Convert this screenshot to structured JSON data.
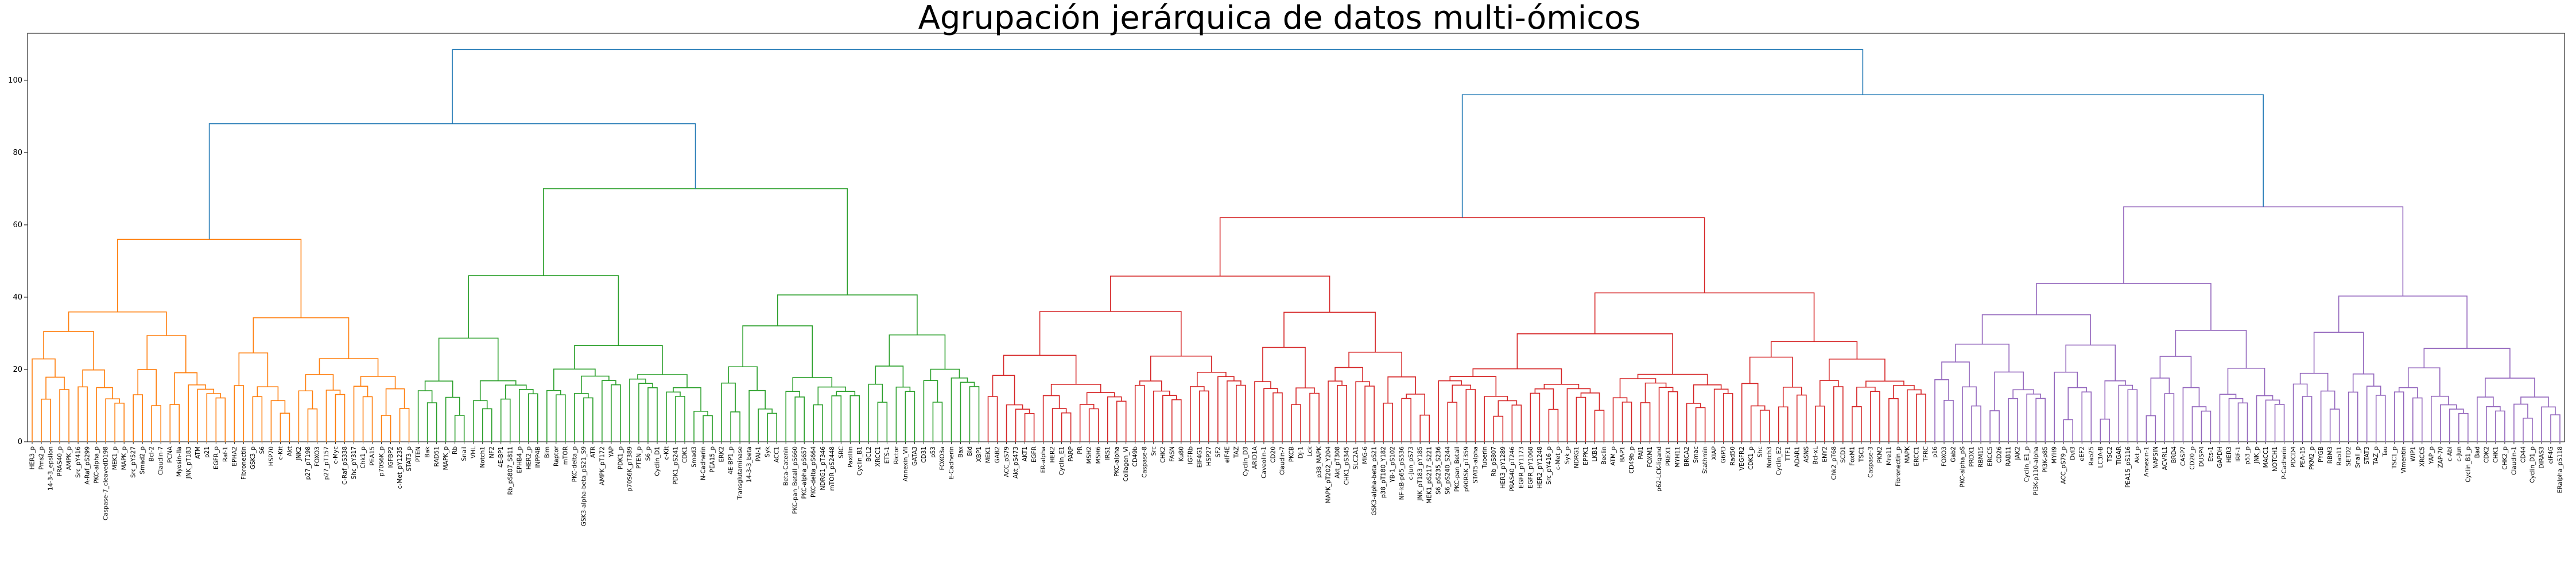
{
  "chart_data": {
    "type": "dendrogram",
    "title": "Agrupación jerárquica de datos multi-ómicos",
    "xlabel": "",
    "ylabel": "",
    "ylim": [
      0,
      113
    ],
    "yticks": [
      0,
      20,
      40,
      60,
      80,
      100
    ],
    "grid": false,
    "legend": "none",
    "colors": {
      "link_top": "#1f77b4",
      "cluster_1": "#ff7f0e",
      "cluster_2": "#2ca02c",
      "cluster_3": "#d62728",
      "cluster_4": "#9467bd"
    },
    "root_height": 108.5,
    "top_links": [
      {
        "name": "left_superclade",
        "height": 88,
        "children": [
          "cluster_1",
          "cluster_2"
        ]
      },
      {
        "name": "right_superclade",
        "height": 96,
        "children": [
          "cluster_3",
          "cluster_4"
        ]
      }
    ],
    "clusters": [
      {
        "id": "cluster_1",
        "color": "#ff7f0e",
        "height": 56,
        "leaves": [
          "HER3_p",
          "Pms2_p",
          "14-3-3_epsilon",
          "PRAS40_p",
          "AMPK_p",
          "Src_pY416",
          "A-Raf_pS299",
          "PKC-alpha_p",
          "Caspase-7_cleavedD198",
          "MEK1_p",
          "MAPK_p",
          "Src_pY527",
          "Smad2_p",
          "Bcl-2",
          "Claudin-7",
          "PCNA",
          "Myosin-IIa",
          "JNK_pT183",
          "ATM",
          "p21",
          "EGFR_p",
          "Raf-1",
          "EPHA2",
          "Fibronectin",
          "GSK3_p",
          "S6",
          "HSP70",
          "c-Kit",
          "Akt",
          "JNK2",
          "p27_pT198",
          "FOXO3",
          "p27_pT157",
          "c-Myc",
          "C-Raf_pS338",
          "Shc_pY317",
          "Chk1_p",
          "PEA15",
          "p70S6K_p",
          "IGFBP2",
          "c-Met_pY1235",
          "STAT3_p"
        ]
      },
      {
        "id": "cluster_2",
        "color": "#2ca02c",
        "height": 70,
        "leaves": [
          "PTEN",
          "Bak",
          "RAD51",
          "MAPK_p",
          "Rb",
          "Snail",
          "VHL",
          "Notch1",
          "NF2",
          "4E-BP1",
          "Rb_pS807_S811",
          "EPHB4_p",
          "HER2_p",
          "INPP4B",
          "Bim",
          "Raptor",
          "mTOR",
          "PKC-delta_p",
          "GSK3-alpha-beta_pS21_S9",
          "ATR",
          "AMPK_pT172",
          "YAP",
          "PDK1_p",
          "p70S6K_pT389",
          "PTEN_p",
          "S6_p",
          "Cyclin_D1",
          "c-Kit",
          "PDK1_pS241",
          "CDK1",
          "Smad3",
          "N-Cadherin",
          "PEA15_p",
          "ERK2",
          "4E-BP1_p",
          "Transglutaminase",
          "14-3-3_beta",
          "PAI-1",
          "Syk",
          "ACC1",
          "Beta-Catenin",
          "PKC-pan_BetaII_pS660",
          "PKC-alpha_pS657",
          "PKC-delta_pS664",
          "NDRG1_pT346",
          "mTOR_pS2448",
          "SRC",
          "Paxillin",
          "Cyclin_B1",
          "BCL2",
          "XRCC1",
          "ETS-1",
          "Rictor",
          "Annexin_VII",
          "GATA3",
          "CD31",
          "p53",
          "FOXO3a",
          "E-Cadherin",
          "Bax",
          "Bid",
          "XBP1"
        ]
      },
      {
        "id": "cluster_3",
        "color": "#d62728",
        "height": 62,
        "leaves": [
          "MEK1",
          "GAB2",
          "ACC_pS79",
          "Akt_pS473",
          "AKT1",
          "EGFR",
          "ER-alpha",
          "HER2",
          "Cyclin_E1",
          "PARP",
          "PR",
          "MSH2",
          "MSH6",
          "IRS1",
          "PKC-alpha",
          "Collagen_VI",
          "CD49b",
          "Caspase-8",
          "Src",
          "CHK2",
          "FASN",
          "Ku80",
          "IGFRb",
          "EIF4G1",
          "HSP27",
          "SF2",
          "eIF4E",
          "TAZ",
          "Cyclin_D3",
          "ARID1A",
          "Caveolin-1",
          "CD20",
          "Claudin-7",
          "PKCB",
          "DJ-1",
          "Lck",
          "p38_MAPK",
          "MAPK_pT202_Y204",
          "Akt_pT308",
          "CHK1_pS345",
          "SLC2A1",
          "MIG-6",
          "GSK3-alpha-beta_pS21",
          "p38_pT180_Y182",
          "YB-1_pS102",
          "NF-kB-p65_pS536",
          "c-Jun_pS73",
          "JNK_pT183_pY185",
          "MEK1_pS217_S221",
          "S6_pS235_S236",
          "S6_pS240_S244",
          "PKC-pan_BetaII",
          "p90RSK_pT359",
          "STAT5-alpha",
          "Tuberin",
          "Rb_pS807",
          "HER3_pY1289",
          "PRAS40_pT246",
          "EGFR_pY1173",
          "EGFR_pY1068",
          "HER2_pY1248",
          "Src_pY416_p",
          "c-Met_p",
          "Syk_p",
          "NDRG1",
          "EPPK1",
          "LKB1",
          "Beclin",
          "ATM_p",
          "BAP1",
          "CD49b_p",
          "PAI1",
          "FOXM1",
          "p62-LCK-ligand",
          "PREX1",
          "MYH11",
          "BRCA2",
          "Smac",
          "Stathmin",
          "XIAP",
          "G6PD",
          "Rad50",
          "VEGFR2",
          "CDK1_p",
          "Shc",
          "Notch3",
          "Cyclin_E2",
          "TTF1",
          "ADAR1",
          "ASNS",
          "Bcl-xL",
          "ENY2",
          "Chk2_pT68",
          "SCD1",
          "FoxM1",
          "TSC1",
          "Caspase-3",
          "PKM2",
          "Mre11",
          "Fibronectin_p",
          "MAPK",
          "ERCC1",
          "TFRC"
        ]
      },
      {
        "id": "cluster_4",
        "color": "#9467bd",
        "height": 65,
        "leaves": [
          "p16",
          "FOXO3",
          "Gab2",
          "PKC-alpha_pS",
          "PRDX1",
          "RBM15",
          "ERCC5",
          "CD26",
          "RAB11",
          "JAK2",
          "Cyclin_E1_p",
          "PI3K-p110-alpha",
          "PI3K-p85",
          "MYH9",
          "ACC_pS79_p",
          "Dvl3",
          "eEF2",
          "Rab25",
          "LC3A-B",
          "TSC2",
          "TIGAR",
          "PEA15_pS116",
          "Akt_p",
          "Annexin-1",
          "NAPSIN",
          "ACVRL1",
          "BRD4",
          "CASP7",
          "CD20_p",
          "DUSP4",
          "Ets-1",
          "GAPDH",
          "HER3",
          "IRF-1",
          "p53_p",
          "JNK_p",
          "MACC1",
          "NOTCH1",
          "P-Cadherin",
          "PDCD4",
          "PEA-15",
          "PKM2_p",
          "PYGB",
          "RBM3",
          "Rab11",
          "SETD2",
          "Snail_p",
          "STAT3",
          "TAZ_p",
          "Tau",
          "TSC1_p",
          "Vimentin",
          "WIP1",
          "XRCC5",
          "YAP_p",
          "ZAP-70",
          "c-Abl",
          "c-Jun",
          "Cyclin_B1_p",
          "Bad",
          "CDK2",
          "CHK1",
          "CHK2_p",
          "Claudin-1",
          "CD44",
          "Cyclin_D1_p",
          "DIRAS3",
          "eIF4G",
          "ERalpha_pS118"
        ]
      }
    ]
  }
}
